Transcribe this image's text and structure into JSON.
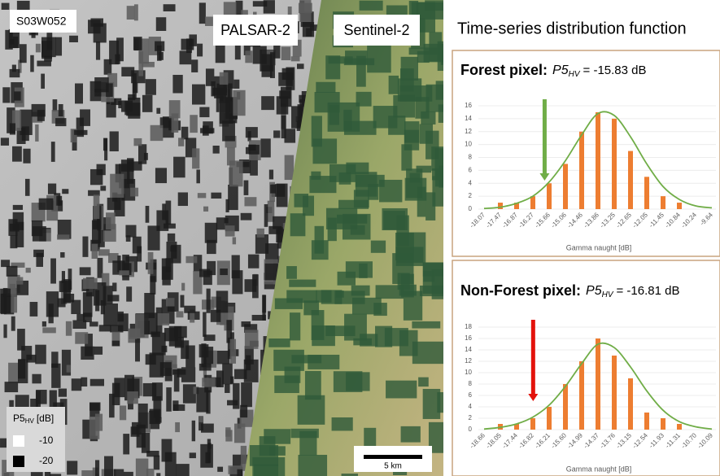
{
  "map": {
    "tile": "S03W052",
    "left_label": "PALSAR-2",
    "right_label": "Sentinel-2",
    "legend": {
      "title": "P5",
      "title_sub": "HV",
      "title_unit": "[dB]",
      "items": [
        "-10",
        "-20"
      ],
      "colors": [
        "#ffffff",
        "#000000"
      ]
    },
    "scale_bar": "5 km"
  },
  "panel_title": "Time-series distribution function",
  "chart_data": [
    {
      "type": "bar",
      "title": "Forest pixel:",
      "metric": "P5",
      "metric_sub": "HV",
      "metric_value": "= -15.83 dB",
      "categories": [
        "-18.07",
        "-17.47",
        "-16.87",
        "-16.27",
        "-15.66",
        "-15.06",
        "-14.46",
        "-13.86",
        "-13.25",
        "-12.65",
        "-12.05",
        "-11.45",
        "-10.84",
        "-10.24",
        "-9.64"
      ],
      "series": [
        {
          "type": "bar",
          "color": "#ed7d31",
          "values": [
            0,
            1,
            1,
            2,
            4,
            7,
            12,
            15,
            14,
            9,
            5,
            2,
            1,
            0,
            0
          ]
        },
        {
          "type": "line",
          "color": "#70ad47",
          "values": [
            0.1,
            0.3,
            0.9,
            2,
            4.2,
            7.5,
            11.5,
            14.8,
            14.5,
            11.2,
            7,
            3.5,
            1.5,
            0.5,
            0.2
          ]
        }
      ],
      "marker": {
        "value": -15.83,
        "color": "#70ad47"
      },
      "ylim": [
        0,
        16
      ],
      "yticks": [
        0,
        2,
        4,
        6,
        8,
        10,
        12,
        14,
        16
      ],
      "grid": true,
      "xlabel": "Gamma naught [dB]"
    },
    {
      "type": "bar",
      "title": "Non-Forest pixel:",
      "metric": "P5",
      "metric_sub": "HV",
      "metric_value": "= -16.81 dB",
      "categories": [
        "-18.66",
        "-18.05",
        "-17.44",
        "-16.82",
        "-16.21",
        "-15.60",
        "-14.99",
        "-14.37",
        "-13.76",
        "-13.15",
        "-12.54",
        "-11.93",
        "-11.31",
        "-10.70",
        "-10.09"
      ],
      "series": [
        {
          "type": "bar",
          "color": "#ed7d31",
          "values": [
            0,
            1,
            1,
            2,
            4,
            8,
            12,
            16,
            13,
            9,
            3,
            2,
            1,
            0,
            0
          ]
        },
        {
          "type": "line",
          "color": "#70ad47",
          "values": [
            0.1,
            0.4,
            1,
            2.2,
            4.3,
            7.6,
            11.6,
            15,
            14.4,
            11,
            6.8,
            3.4,
            1.4,
            0.5,
            0.1
          ]
        }
      ],
      "marker": {
        "value": -16.81,
        "color": "#e3120b"
      },
      "ylim": [
        0,
        18
      ],
      "yticks": [
        0,
        2,
        4,
        6,
        8,
        10,
        12,
        14,
        16,
        18
      ],
      "grid": true,
      "xlabel": "Gamma naught [dB]"
    }
  ]
}
